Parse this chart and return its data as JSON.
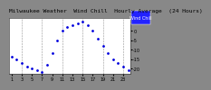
{
  "title": "Milwaukee Weather  Wind Chill  Hourly Average  (24 Hours)",
  "hours": [
    1,
    2,
    3,
    4,
    5,
    6,
    7,
    8,
    9,
    10,
    11,
    12,
    13,
    14,
    15,
    16,
    17,
    18,
    19,
    20,
    21,
    22,
    23,
    24
  ],
  "wind_chill": [
    -14,
    -15,
    -17,
    -19,
    -20,
    -21,
    -22,
    -18,
    -12,
    -5,
    0,
    2,
    3,
    4,
    5,
    3,
    0,
    -4,
    -8,
    -12,
    -15,
    -17,
    -19,
    -21
  ],
  "line_color": "#0000dd",
  "marker_size": 2.0,
  "plot_bg_color": "#ffffff",
  "outer_bg_color": "#888888",
  "grid_color": "#888888",
  "grid_positions": [
    3,
    7,
    11,
    15,
    19,
    23
  ],
  "ylim": [
    -23,
    7
  ],
  "ytick_values": [
    -20,
    -15,
    -10,
    -5,
    0,
    5
  ],
  "ytick_labels": [
    "-20",
    "-15",
    "-10",
    "-5",
    "0",
    "5"
  ],
  "xtick_positions": [
    1,
    3,
    5,
    7,
    9,
    11,
    13,
    15,
    17,
    19,
    21,
    23
  ],
  "xtick_labels": [
    "1",
    "3",
    "5",
    "7",
    "9",
    "11",
    "13",
    "15",
    "17",
    "19",
    "21",
    "23"
  ],
  "legend_label": "Wind Chill",
  "legend_bg": "#2222ff",
  "legend_text_color": "#ffffff",
  "title_fontsize": 4.5,
  "tick_fontsize": 3.5,
  "legend_fontsize": 3.5
}
